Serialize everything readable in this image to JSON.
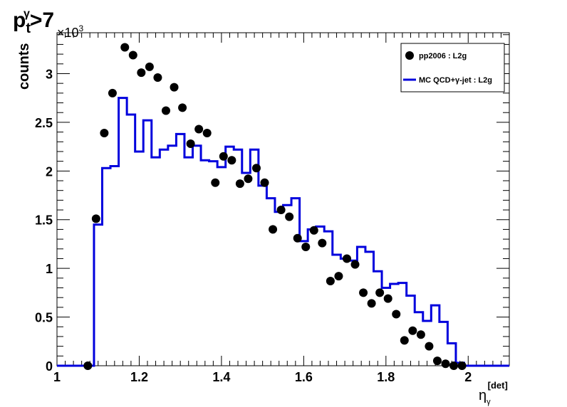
{
  "chart_data": {
    "type": "scatter",
    "title": {
      "main": "p",
      "sub": "t",
      "sup": "γ",
      "rest": ">7"
    },
    "ylabel": "counts",
    "xlabel": {
      "main": "η",
      "sub": "γ",
      "sup": "[det]"
    },
    "y_multiplier": {
      "base": "×10",
      "exp": "3"
    },
    "xlim": [
      1.0,
      2.1
    ],
    "ylim": [
      0,
      3.42
    ],
    "x_ticks": [
      1,
      1.2,
      1.4,
      1.6,
      1.8,
      2
    ],
    "y_ticks": [
      0,
      0.5,
      1,
      1.5,
      2,
      2.5,
      3
    ],
    "grid": false,
    "legend_position": "top-right",
    "series": [
      {
        "name": "pp2006 : L2g",
        "kind": "markers",
        "color": "#000000",
        "x": [
          1.075,
          1.095,
          1.115,
          1.135,
          1.165,
          1.185,
          1.205,
          1.225,
          1.245,
          1.265,
          1.285,
          1.305,
          1.325,
          1.345,
          1.365,
          1.385,
          1.405,
          1.425,
          1.445,
          1.465,
          1.485,
          1.505,
          1.525,
          1.545,
          1.565,
          1.585,
          1.605,
          1.625,
          1.645,
          1.665,
          1.685,
          1.705,
          1.725,
          1.745,
          1.765,
          1.785,
          1.805,
          1.825,
          1.845,
          1.865,
          1.885,
          1.905,
          1.925,
          1.945,
          1.965,
          1.985
        ],
        "y": [
          0.0,
          1.51,
          2.39,
          2.8,
          3.27,
          3.19,
          3.01,
          3.07,
          2.96,
          2.62,
          2.86,
          2.65,
          2.28,
          2.43,
          2.39,
          1.88,
          2.15,
          2.11,
          1.87,
          1.92,
          2.03,
          1.88,
          1.4,
          1.6,
          1.53,
          1.31,
          1.22,
          1.39,
          1.26,
          0.87,
          0.92,
          1.1,
          1.04,
          0.75,
          0.64,
          0.75,
          0.69,
          0.53,
          0.26,
          0.36,
          0.32,
          0.2,
          0.05,
          0.02,
          0.0,
          0.0
        ]
      },
      {
        "name": "MC QCD+γ-jet : L2g",
        "kind": "step",
        "color": "#0000dd",
        "bin_edges": [
          1.08,
          1.09,
          1.11,
          1.13,
          1.15,
          1.17,
          1.19,
          1.21,
          1.23,
          1.25,
          1.27,
          1.29,
          1.31,
          1.33,
          1.35,
          1.37,
          1.39,
          1.41,
          1.43,
          1.45,
          1.47,
          1.49,
          1.51,
          1.53,
          1.55,
          1.57,
          1.59,
          1.61,
          1.63,
          1.65,
          1.67,
          1.69,
          1.71,
          1.73,
          1.75,
          1.77,
          1.79,
          1.81,
          1.83,
          1.85,
          1.87,
          1.89,
          1.91,
          1.93,
          1.95,
          1.97,
          1.99,
          2.01
        ],
        "values": [
          0.0,
          1.45,
          2.03,
          2.05,
          2.75,
          2.58,
          2.2,
          2.52,
          2.14,
          2.22,
          2.26,
          2.38,
          2.14,
          2.26,
          2.11,
          2.1,
          2.04,
          2.25,
          2.22,
          1.98,
          2.22,
          1.85,
          1.72,
          1.58,
          1.65,
          1.72,
          1.28,
          1.4,
          1.43,
          1.38,
          1.14,
          1.1,
          1.08,
          1.22,
          1.17,
          0.97,
          0.8,
          0.84,
          0.85,
          0.72,
          0.55,
          0.46,
          0.62,
          0.45,
          0.23,
          0.03,
          0.0
        ]
      }
    ]
  }
}
